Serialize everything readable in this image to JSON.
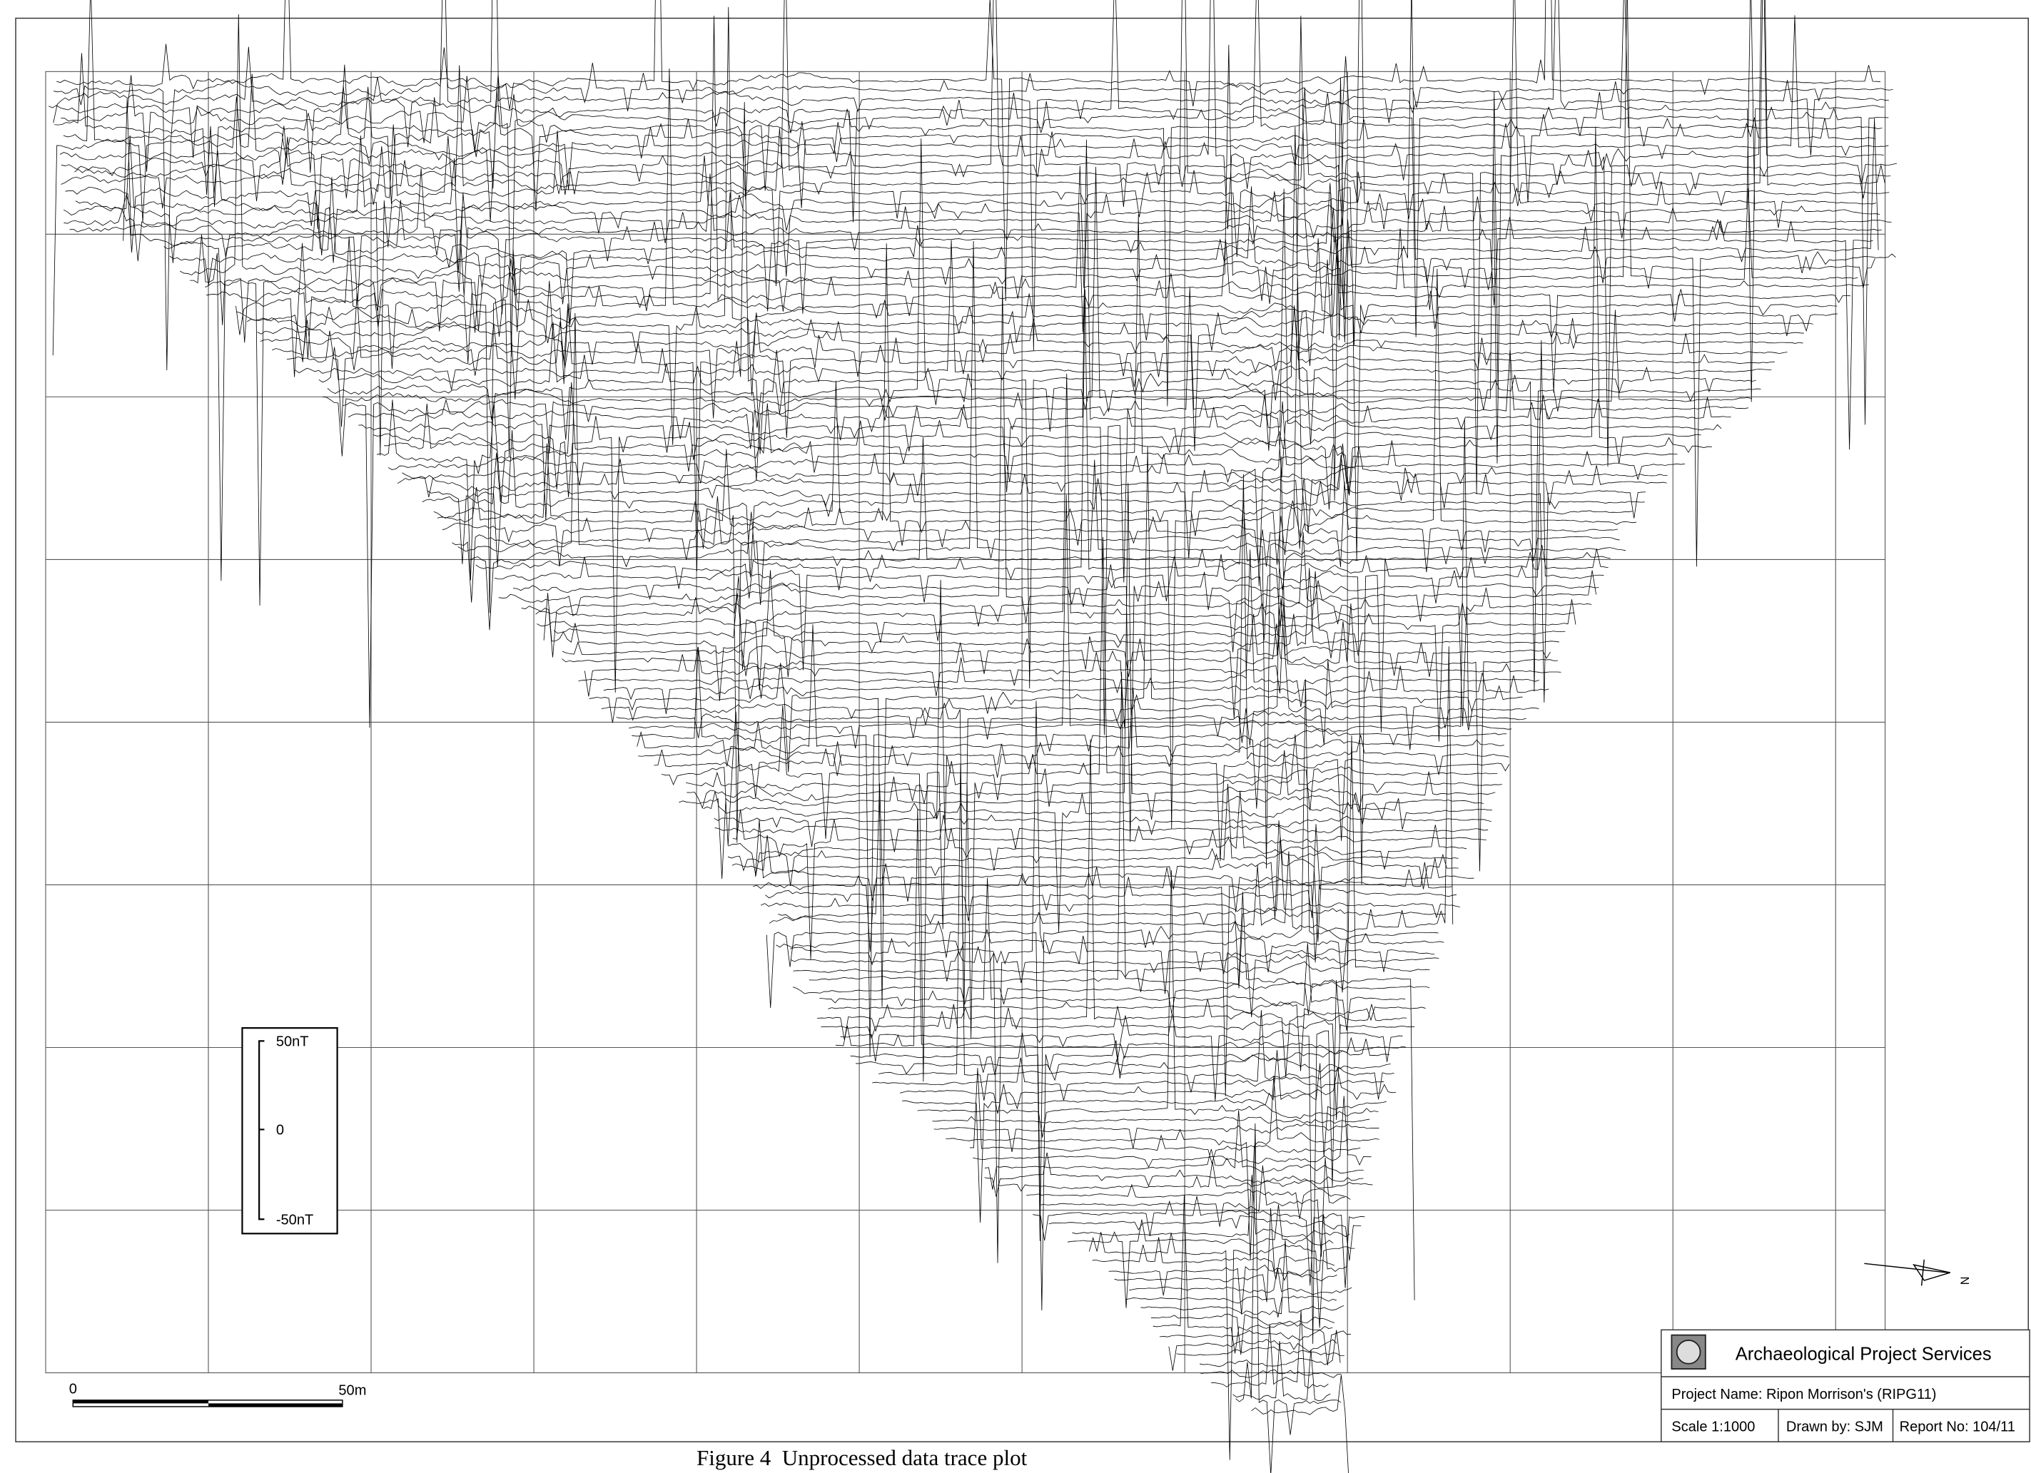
{
  "legend": {
    "max": "50nT",
    "zero": "0",
    "min": "-50nT"
  },
  "scale_bar": {
    "start": "0",
    "end": "50m"
  },
  "title_block": {
    "organization": "Archaeological Project Services",
    "project": "Project Name: Ripon Morrison's (RIPG11)",
    "scale": "Scale 1:1000",
    "drawn_by": "Drawn by: SJM",
    "report": "Report No: 104/11"
  },
  "north_label": "N",
  "caption": "Figure 4  Unprocessed data trace plot"
}
